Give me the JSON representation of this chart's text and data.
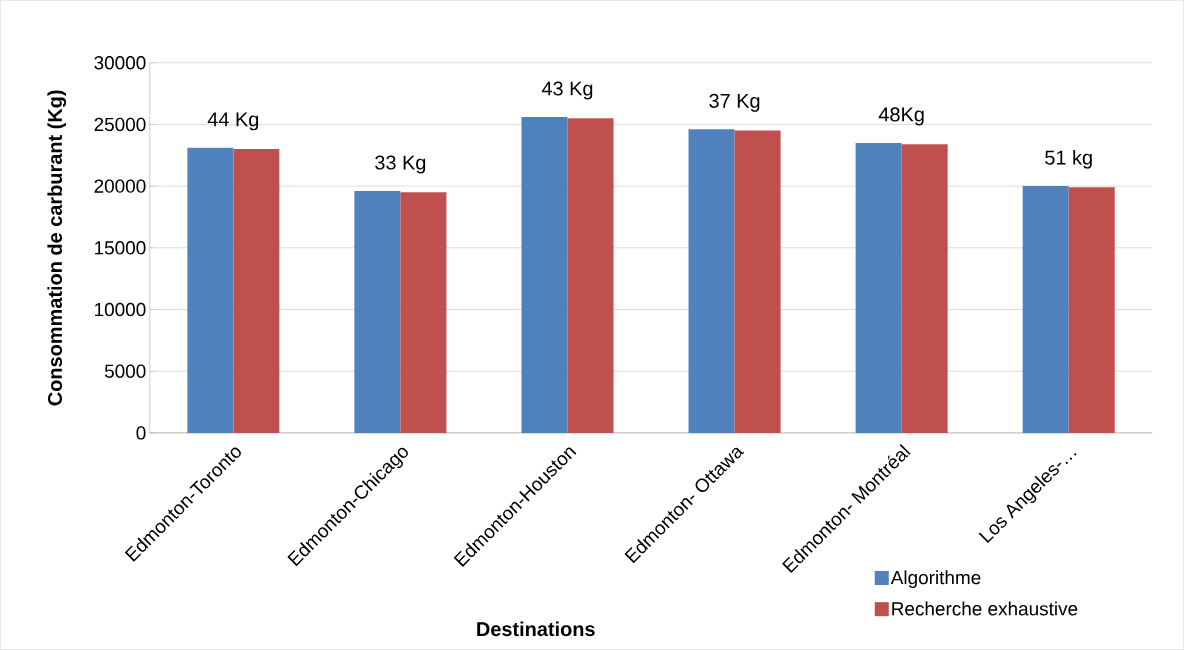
{
  "chart_data": {
    "type": "bar",
    "xlabel": "Destinations",
    "ylabel": "Consommation de carburant (Kg)",
    "categories": [
      "Edmonton-Toronto",
      "Edmonton-Chicago",
      "Edmonton-Houston",
      "Edmonton- Ottawa",
      "Edmonton- Montréal",
      "Los Angeles-…"
    ],
    "series": [
      {
        "name": "Algorithme",
        "color": "#4f81bd",
        "values": [
          23100,
          19600,
          25600,
          24600,
          23500,
          20000
        ]
      },
      {
        "name": "Recherche exhaustive",
        "color": "#c0504d",
        "values": [
          23000,
          19500,
          25500,
          24500,
          23400,
          19900
        ]
      }
    ],
    "annotations": [
      {
        "text": "44 Kg",
        "x": "Edmonton-Toronto",
        "y": 23100
      },
      {
        "text": "33 Kg",
        "x": "Edmonton-Chicago",
        "y": 19600
      },
      {
        "text": "43 Kg",
        "x": "Edmonton-Houston",
        "y": 25600
      },
      {
        "text": "37 Kg",
        "x": "Edmonton- Ottawa",
        "y": 24600
      },
      {
        "text": "48Kg",
        "x": "Edmonton- Montréal",
        "y": 23500
      },
      {
        "text": "51 kg",
        "x": "Los Angeles-…",
        "y": 20000
      }
    ],
    "ylim": [
      0,
      30000
    ],
    "yticks": [
      0,
      5000,
      10000,
      15000,
      20000,
      25000,
      30000
    ],
    "grid": "y",
    "legend": "bottom right"
  }
}
